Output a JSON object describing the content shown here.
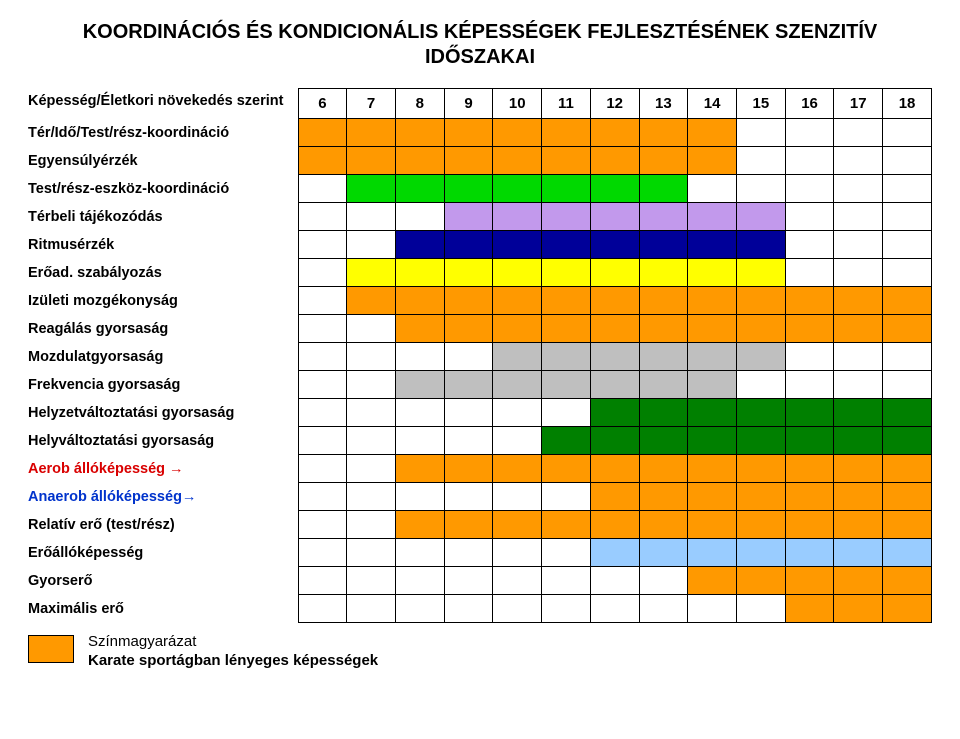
{
  "title_line1": "KOORDINÁCIÓS ÉS KONDICIONÁLIS KÉPESSÉGEK FEJLESZTÉSÉNEK SZENZITÍV",
  "title_line2": "IDŐSZAKAI",
  "header_label": "Képesség/Életkori növekedés szerint",
  "ages": [
    "6",
    "7",
    "8",
    "9",
    "10",
    "11",
    "12",
    "13",
    "14",
    "15",
    "16",
    "17",
    "18"
  ],
  "colors": {
    "orange": "#ff9900",
    "green_bright": "#00d900",
    "purple": "#c299ec",
    "navy": "#000099",
    "yellow": "#ffff00",
    "grey": "#bfbfbf",
    "green_dark": "#008000",
    "blue_light": "#99ccff",
    "white": "#ffffff",
    "black": "#000000"
  },
  "rows": [
    {
      "label": "Tér/Idő/Test/rész-koordináció",
      "label_color": "black",
      "fills": [
        "orange",
        "orange",
        "orange",
        "orange",
        "orange",
        "orange",
        "orange",
        "orange",
        "orange",
        "",
        "",
        "",
        ""
      ]
    },
    {
      "label": "Egyensúlyérzék",
      "label_color": "black",
      "fills": [
        "orange",
        "orange",
        "orange",
        "orange",
        "orange",
        "orange",
        "orange",
        "orange",
        "orange",
        "",
        "",
        "",
        ""
      ]
    },
    {
      "label": "Test/rész-eszköz-koordináció",
      "label_color": "black",
      "fills": [
        "",
        "green_bright",
        "green_bright",
        "green_bright",
        "green_bright",
        "green_bright",
        "green_bright",
        "green_bright",
        "",
        "",
        "",
        "",
        ""
      ]
    },
    {
      "label": "Térbeli tájékozódás",
      "label_color": "black",
      "fills": [
        "",
        "",
        "",
        "purple",
        "purple",
        "purple",
        "purple",
        "purple",
        "purple",
        "purple",
        "",
        "",
        ""
      ]
    },
    {
      "label": "Ritmusérzék",
      "label_color": "black",
      "fills": [
        "",
        "",
        "navy",
        "navy",
        "navy",
        "navy",
        "navy",
        "navy",
        "navy",
        "navy",
        "",
        "",
        ""
      ]
    },
    {
      "label": "Erőad. szabályozás",
      "label_color": "black",
      "fills": [
        "",
        "yellow",
        "yellow",
        "yellow",
        "yellow",
        "yellow",
        "yellow",
        "yellow",
        "yellow",
        "yellow",
        "",
        "",
        ""
      ]
    },
    {
      "label": "Izületi mozgékonyság",
      "label_color": "black",
      "fills": [
        "",
        "orange",
        "orange",
        "orange",
        "orange",
        "orange",
        "orange",
        "orange",
        "orange",
        "orange",
        "orange",
        "orange",
        "orange"
      ]
    },
    {
      "label": "Reagálás gyorsaság",
      "label_color": "black",
      "fills": [
        "",
        "",
        "orange",
        "orange",
        "orange",
        "orange",
        "orange",
        "orange",
        "orange",
        "orange",
        "orange",
        "orange",
        "orange"
      ]
    },
    {
      "label": "Mozdulatgyorsaság",
      "label_color": "black",
      "fills": [
        "",
        "",
        "",
        "",
        "grey",
        "grey",
        "grey",
        "grey",
        "grey",
        "grey",
        "",
        "",
        ""
      ]
    },
    {
      "label": "Frekvencia gyorsaság",
      "label_color": "black",
      "fills": [
        "",
        "",
        "grey",
        "grey",
        "grey",
        "grey",
        "grey",
        "grey",
        "grey",
        "",
        "",
        "",
        ""
      ]
    },
    {
      "label": "Helyzetváltoztatási gyorsaság",
      "label_color": "black",
      "fills": [
        "",
        "",
        "",
        "",
        "",
        "",
        "green_dark",
        "green_dark",
        "green_dark",
        "green_dark",
        "green_dark",
        "green_dark",
        "green_dark"
      ]
    },
    {
      "label": "Helyváltoztatási gyorsaság",
      "label_color": "black",
      "fills": [
        "",
        "",
        "",
        "",
        "",
        "green_dark",
        "green_dark",
        "green_dark",
        "green_dark",
        "green_dark",
        "green_dark",
        "green_dark",
        "green_dark"
      ]
    },
    {
      "label": "Aerob állóképesség →",
      "label_color": "red",
      "fills": [
        "",
        "",
        "orange",
        "orange",
        "orange",
        "orange",
        "orange",
        "orange",
        "orange",
        "orange",
        "orange",
        "orange",
        "orange"
      ]
    },
    {
      "label": "Anaerob állóképesség→",
      "label_color": "blue",
      "fills": [
        "",
        "",
        "",
        "",
        "",
        "",
        "orange",
        "orange",
        "orange",
        "orange",
        "orange",
        "orange",
        "orange"
      ]
    },
    {
      "label": "Relatív erő (test/rész)",
      "label_color": "black",
      "fills": [
        "",
        "",
        "orange",
        "orange",
        "orange",
        "orange",
        "orange",
        "orange",
        "orange",
        "orange",
        "orange",
        "orange",
        "orange"
      ]
    },
    {
      "label": "Erőállóképesség",
      "label_color": "black",
      "fills": [
        "",
        "",
        "",
        "",
        "",
        "",
        "blue_light",
        "blue_light",
        "blue_light",
        "blue_light",
        "blue_light",
        "blue_light",
        "blue_light"
      ]
    },
    {
      "label": "Gyorserő",
      "label_color": "black",
      "fills": [
        "",
        "",
        "",
        "",
        "",
        "",
        "",
        "",
        "orange",
        "orange",
        "orange",
        "orange",
        "orange"
      ]
    },
    {
      "label": "Maximális erő",
      "label_color": "black",
      "fills": [
        "",
        "",
        "",
        "",
        "",
        "",
        "",
        "",
        "",
        "",
        "orange",
        "orange",
        "orange"
      ]
    }
  ],
  "legend": {
    "swatch_color": "orange",
    "line1": "Színmagyarázat",
    "line2": "Karate sportágban lényeges képességek"
  }
}
